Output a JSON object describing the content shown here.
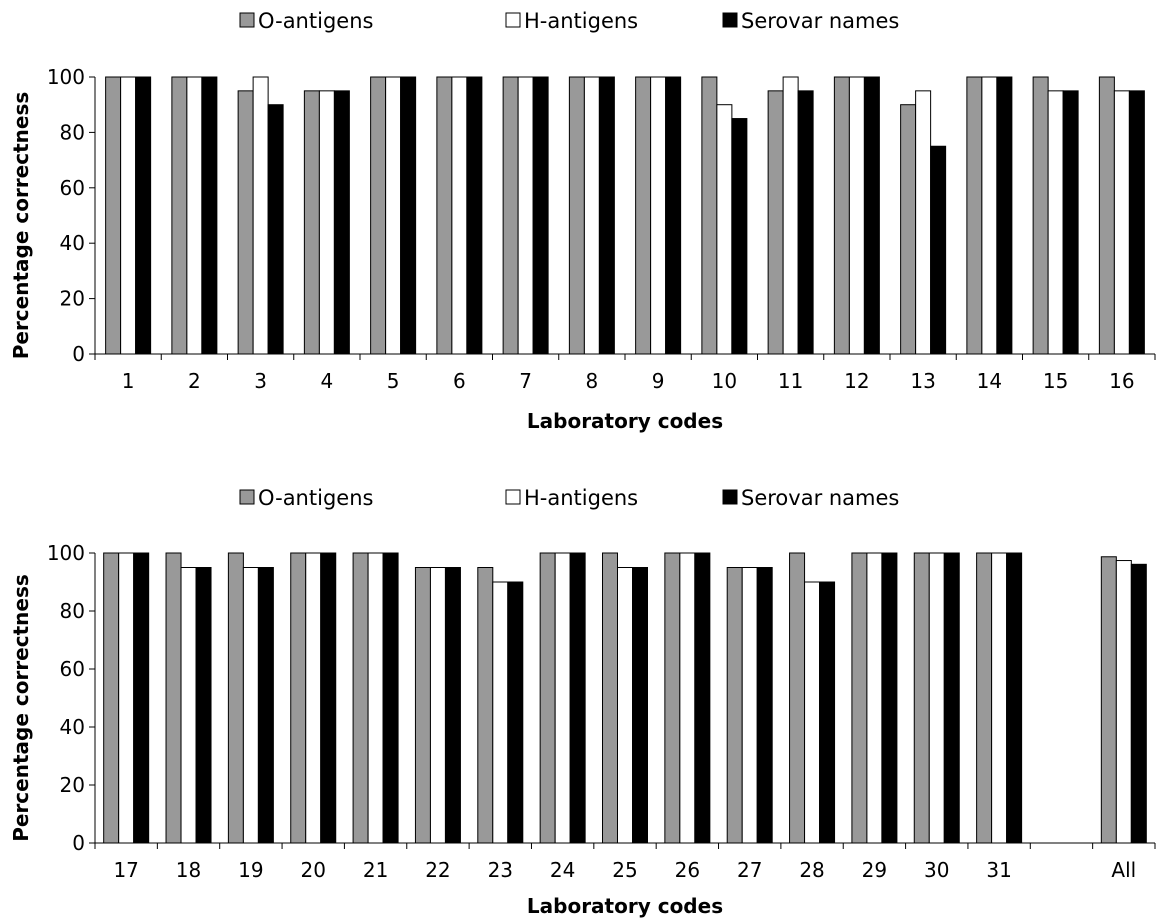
{
  "chart_data": [
    {
      "type": "bar",
      "title": "",
      "xlabel": "Laboratory codes",
      "ylabel": "Percentage correctness",
      "ylim": [
        0,
        100
      ],
      "yticks": [
        0,
        20,
        40,
        60,
        80,
        100
      ],
      "grid": false,
      "legend_position": "top",
      "categories": [
        "1",
        "2",
        "3",
        "4",
        "5",
        "6",
        "7",
        "8",
        "9",
        "10",
        "11",
        "12",
        "13",
        "14",
        "15",
        "16"
      ],
      "series": [
        {
          "name": "O-antigens",
          "color": "#999999",
          "values": [
            100,
            100,
            95,
            95,
            100,
            100,
            100,
            100,
            100,
            100,
            95,
            100,
            90,
            100,
            100,
            100
          ]
        },
        {
          "name": "H-antigens",
          "color": "#ffffff",
          "values": [
            100,
            100,
            100,
            95,
            100,
            100,
            100,
            100,
            100,
            90,
            100,
            100,
            95,
            100,
            95,
            95
          ]
        },
        {
          "name": "Serovar names",
          "color": "#000000",
          "values": [
            100,
            100,
            90,
            95,
            100,
            100,
            100,
            100,
            100,
            85,
            95,
            100,
            75,
            100,
            95,
            95
          ]
        }
      ]
    },
    {
      "type": "bar",
      "title": "",
      "xlabel": "Laboratory codes",
      "ylabel": "Percentage correctness",
      "ylim": [
        0,
        100
      ],
      "yticks": [
        0,
        20,
        40,
        60,
        80,
        100
      ],
      "grid": false,
      "legend_position": "top",
      "categories": [
        "17",
        "18",
        "19",
        "20",
        "21",
        "22",
        "23",
        "24",
        "25",
        "26",
        "27",
        "28",
        "29",
        "30",
        "31",
        "",
        "All"
      ],
      "series": [
        {
          "name": "O-antigens",
          "color": "#999999",
          "values": [
            100,
            100,
            100,
            100,
            100,
            95,
            95,
            100,
            100,
            100,
            95,
            100,
            100,
            100,
            100,
            null,
            98.7
          ]
        },
        {
          "name": "H-antigens",
          "color": "#ffffff",
          "values": [
            100,
            95,
            95,
            100,
            100,
            95,
            90,
            100,
            95,
            100,
            95,
            90,
            100,
            100,
            100,
            null,
            97.4
          ]
        },
        {
          "name": "Serovar names",
          "color": "#000000",
          "values": [
            100,
            95,
            95,
            100,
            100,
            95,
            90,
            100,
            95,
            100,
            95,
            90,
            100,
            100,
            100,
            null,
            96.1
          ]
        }
      ]
    }
  ]
}
